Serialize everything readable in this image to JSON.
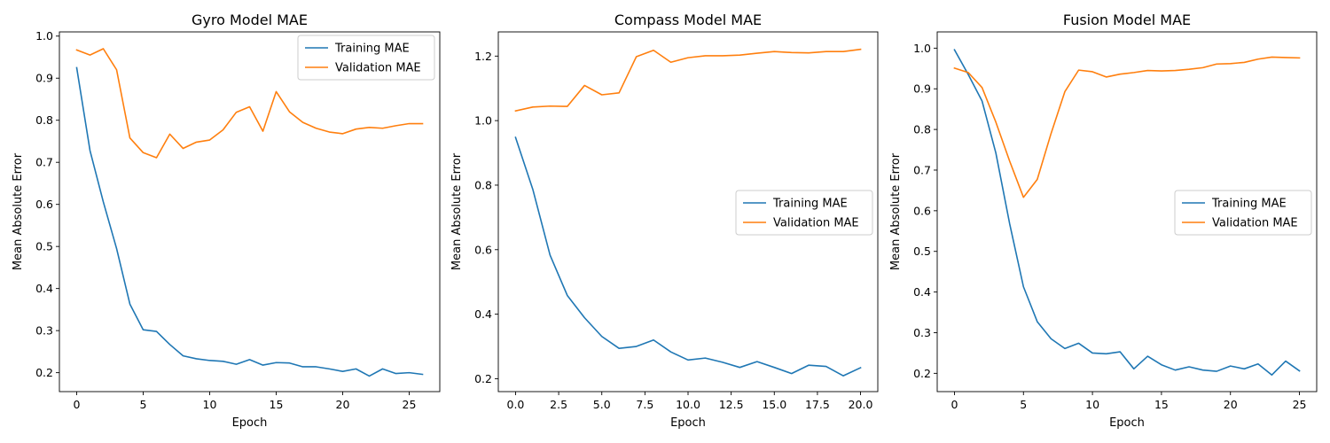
{
  "chart_data": [
    {
      "type": "line",
      "title": "Gyro Model MAE",
      "xlabel": "Epoch",
      "ylabel": "Mean Absolute Error",
      "xlim": [
        -1.3,
        27.3
      ],
      "ylim": [
        0.155,
        1.01
      ],
      "xticks": [
        0,
        5,
        10,
        15,
        20,
        25
      ],
      "xtick_labels": [
        "0",
        "5",
        "10",
        "15",
        "20",
        "25"
      ],
      "yticks": [
        0.2,
        0.3,
        0.4,
        0.5,
        0.6,
        0.7,
        0.8,
        0.9,
        1.0
      ],
      "ytick_labels": [
        "0.2",
        "0.3",
        "0.4",
        "0.5",
        "0.6",
        "0.7",
        "0.8",
        "0.9",
        "1.0"
      ],
      "legend": "top-right",
      "grid": false,
      "x": [
        0,
        1,
        2,
        3,
        4,
        5,
        6,
        7,
        8,
        9,
        10,
        11,
        12,
        13,
        14,
        15,
        16,
        17,
        18,
        19,
        20,
        21,
        22,
        23,
        24,
        25,
        26
      ],
      "series": [
        {
          "name": "Training MAE",
          "color": "#1f77b4",
          "values": [
            0.925,
            0.728,
            0.606,
            0.495,
            0.363,
            0.302,
            0.298,
            0.267,
            0.24,
            0.233,
            0.229,
            0.227,
            0.22,
            0.231,
            0.218,
            0.224,
            0.223,
            0.214,
            0.214,
            0.209,
            0.203,
            0.209,
            0.192,
            0.209,
            0.198,
            0.2,
            0.196
          ]
        },
        {
          "name": "Validation MAE",
          "color": "#ff7f0e",
          "values": [
            0.967,
            0.955,
            0.97,
            0.92,
            0.758,
            0.723,
            0.711,
            0.767,
            0.733,
            0.748,
            0.753,
            0.777,
            0.819,
            0.832,
            0.774,
            0.868,
            0.82,
            0.795,
            0.781,
            0.772,
            0.768,
            0.779,
            0.783,
            0.781,
            0.787,
            0.792,
            0.792
          ]
        }
      ]
    },
    {
      "type": "line",
      "title": "Compass Model MAE",
      "xlabel": "Epoch",
      "ylabel": "Mean Absolute Error",
      "xlim": [
        -1.0,
        21.0
      ],
      "ylim": [
        0.16,
        1.275
      ],
      "xticks": [
        0,
        2.5,
        5,
        7.5,
        10,
        12.5,
        15,
        17.5,
        20
      ],
      "xtick_labels": [
        "0.0",
        "2.5",
        "5.0",
        "7.5",
        "10.0",
        "12.5",
        "15.0",
        "17.5",
        "20.0"
      ],
      "yticks": [
        0.2,
        0.4,
        0.6,
        0.8,
        1.0,
        1.2
      ],
      "ytick_labels": [
        "0.2",
        "0.4",
        "0.6",
        "0.8",
        "1.0",
        "1.2"
      ],
      "legend": "center-right",
      "grid": false,
      "x": [
        0,
        1,
        2,
        3,
        4,
        5,
        6,
        7,
        8,
        9,
        10,
        11,
        12,
        13,
        14,
        15,
        16,
        17,
        18,
        19,
        20
      ],
      "series": [
        {
          "name": "Training MAE",
          "color": "#1f77b4",
          "values": [
            0.948,
            0.787,
            0.583,
            0.458,
            0.389,
            0.331,
            0.294,
            0.3,
            0.32,
            0.283,
            0.258,
            0.264,
            0.251,
            0.235,
            0.253,
            0.235,
            0.216,
            0.242,
            0.238,
            0.209,
            0.234
          ]
        },
        {
          "name": "Validation MAE",
          "color": "#ff7f0e",
          "values": [
            1.03,
            1.042,
            1.045,
            1.044,
            1.109,
            1.08,
            1.086,
            1.198,
            1.218,
            1.181,
            1.195,
            1.201,
            1.201,
            1.203,
            1.209,
            1.214,
            1.211,
            1.21,
            1.214,
            1.214,
            1.221
          ]
        }
      ]
    },
    {
      "type": "line",
      "title": "Fusion Model MAE",
      "xlabel": "Epoch",
      "ylabel": "Mean Absolute Error",
      "xlim": [
        -1.25,
        26.25
      ],
      "ylim": [
        0.155,
        1.04
      ],
      "xticks": [
        0,
        5,
        10,
        15,
        20,
        25
      ],
      "xtick_labels": [
        "0",
        "5",
        "10",
        "15",
        "20",
        "25"
      ],
      "yticks": [
        0.2,
        0.3,
        0.4,
        0.5,
        0.6,
        0.7,
        0.8,
        0.9,
        1.0
      ],
      "ytick_labels": [
        "0.2",
        "0.3",
        "0.4",
        "0.5",
        "0.6",
        "0.7",
        "0.8",
        "0.9",
        "1.0"
      ],
      "legend": "center-right",
      "grid": false,
      "x": [
        0,
        1,
        2,
        3,
        4,
        5,
        6,
        7,
        8,
        9,
        10,
        11,
        12,
        13,
        14,
        15,
        16,
        17,
        18,
        19,
        20,
        21,
        22,
        23,
        24,
        25
      ],
      "series": [
        {
          "name": "Training MAE",
          "color": "#1f77b4",
          "values": [
            0.996,
            0.935,
            0.87,
            0.742,
            0.568,
            0.413,
            0.327,
            0.285,
            0.261,
            0.274,
            0.25,
            0.248,
            0.253,
            0.211,
            0.242,
            0.221,
            0.208,
            0.216,
            0.208,
            0.205,
            0.218,
            0.211,
            0.223,
            0.196,
            0.23,
            0.206
          ]
        },
        {
          "name": "Validation MAE",
          "color": "#ff7f0e",
          "values": [
            0.951,
            0.94,
            0.903,
            0.818,
            0.722,
            0.633,
            0.677,
            0.79,
            0.893,
            0.946,
            0.942,
            0.929,
            0.936,
            0.94,
            0.945,
            0.944,
            0.945,
            0.948,
            0.952,
            0.961,
            0.962,
            0.965,
            0.973,
            0.978,
            0.977,
            0.976
          ]
        }
      ]
    }
  ]
}
